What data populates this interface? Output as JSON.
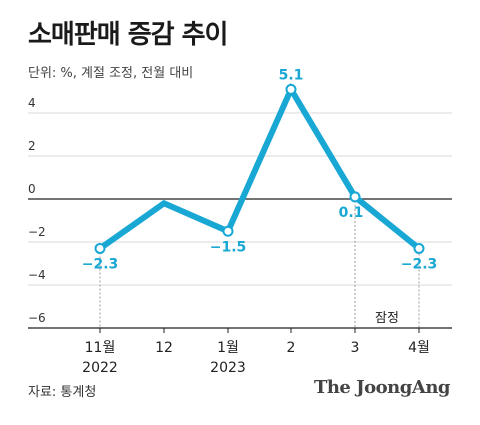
{
  "title": "소매판매 증감 추이",
  "unit_note": "단위: %, 계절 조정, 전월 대비",
  "source": "자료: 통계청",
  "brand": "The JoongAng",
  "chart_data": {
    "type": "line",
    "x": [
      {
        "label": "11월",
        "sub": "2022"
      },
      {
        "label": "12",
        "sub": ""
      },
      {
        "label": "1월",
        "sub": "2023"
      },
      {
        "label": "2",
        "sub": ""
      },
      {
        "label": "3",
        "sub": ""
      },
      {
        "label": "4월",
        "sub": ""
      }
    ],
    "series": [
      {
        "values": [
          -2.3,
          -0.2,
          -1.5,
          5.1,
          0.1,
          -2.3
        ],
        "color": "#19a7d4"
      }
    ],
    "data_labels": [
      {
        "index": 0,
        "text": "−2.3"
      },
      {
        "index": 2,
        "text": "−1.5"
      },
      {
        "index": 3,
        "text": "5.1"
      },
      {
        "index": 4,
        "text": "0.1"
      },
      {
        "index": 5,
        "text": "−2.3"
      }
    ],
    "y_ticks": [
      {
        "value": 4,
        "label": "4"
      },
      {
        "value": 2,
        "label": "2"
      },
      {
        "value": 0,
        "label": "0"
      },
      {
        "value": -2,
        "label": "−2"
      },
      {
        "value": -4,
        "label": "−4"
      },
      {
        "value": -6,
        "label": "−6"
      }
    ],
    "ylim": [
      -6.2,
      5.6
    ],
    "annotation": {
      "text": "잠정",
      "from_index": 4,
      "to_index": 5
    }
  }
}
